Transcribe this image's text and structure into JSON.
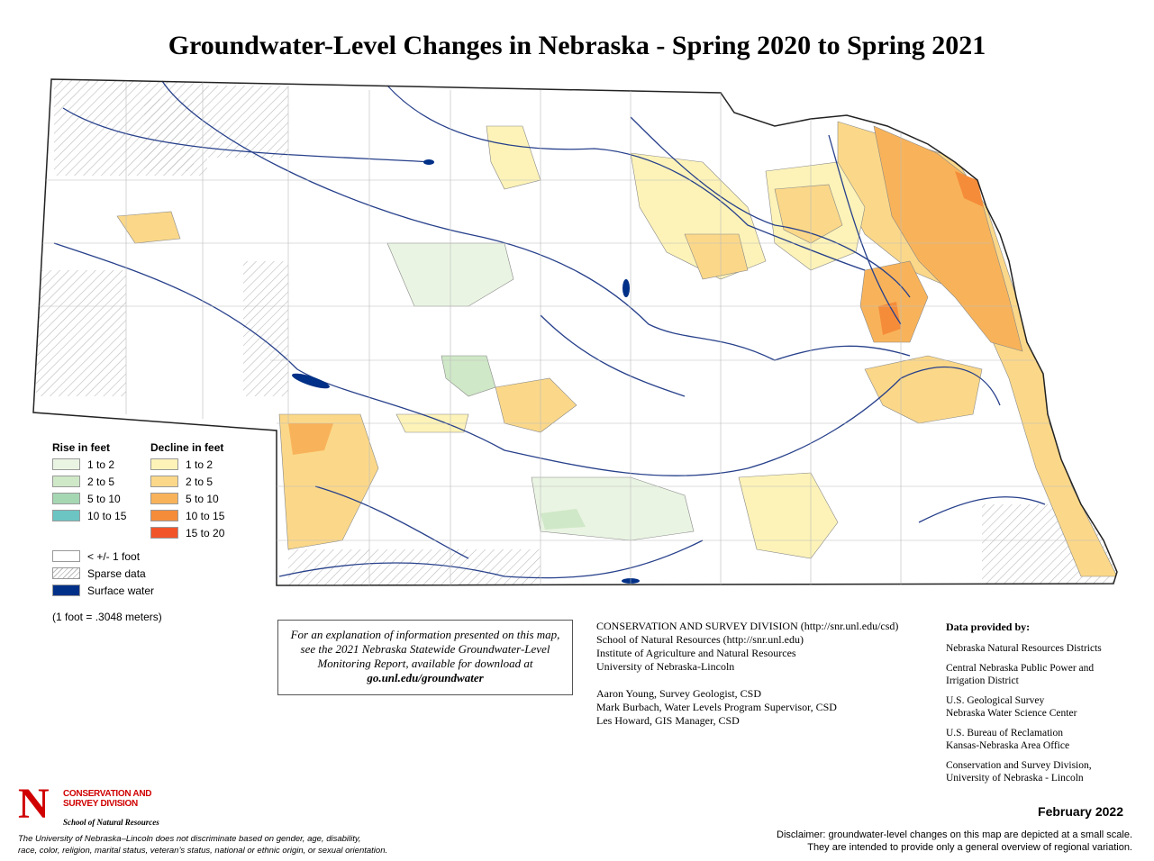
{
  "title": "Groundwater-Level Changes in Nebraska - Spring 2020 to Spring 2021",
  "legend": {
    "rise_title": "Rise in feet",
    "rise": [
      {
        "label": "1 to 2",
        "color": "#eaf4e3"
      },
      {
        "label": "2 to 5",
        "color": "#cfe8c7"
      },
      {
        "label": "5 to 10",
        "color": "#a5d7b3"
      },
      {
        "label": "10 to 15",
        "color": "#6cc5c3"
      }
    ],
    "decline_title": "Decline in feet",
    "decline": [
      {
        "label": "1 to 2",
        "color": "#fdf3b8"
      },
      {
        "label": "2 to 5",
        "color": "#fbd889"
      },
      {
        "label": "5 to 10",
        "color": "#f8b35a"
      },
      {
        "label": "10 to 15",
        "color": "#f58c3a"
      },
      {
        "label": "15 to 20",
        "color": "#f2542a"
      }
    ],
    "other": [
      {
        "label": "< +/- 1 foot",
        "color": "#ffffff"
      },
      {
        "label": "Sparse data",
        "color": "hatch"
      },
      {
        "label": "Surface water",
        "color": "#003087"
      }
    ],
    "note": "(1 foot = .3048 meters)"
  },
  "explanation": {
    "text": "For an explanation of information presented on this map, see the 2021 Nebraska Statewide Groundwater-Level Monitoring Report, available for download at",
    "link": "go.unl.edu/groundwater"
  },
  "credits": {
    "institution": [
      "CONSERVATION AND SURVEY DIVISION (http://snr.unl.edu/csd)",
      "School of Natural Resources (http://snr.unl.edu)",
      "Institute of Agriculture and Natural Resources",
      "University of Nebraska-Lincoln"
    ],
    "staff": [
      "Aaron Young, Survey Geologist, CSD",
      "Mark Burbach, Water Levels Program Supervisor, CSD",
      "Les Howard, GIS Manager, CSD"
    ]
  },
  "data_provided": {
    "title": "Data provided by:",
    "items": [
      [
        "Nebraska Natural Resources Districts"
      ],
      [
        "Central Nebraska Public Power and",
        "Irrigation District"
      ],
      [
        "U.S. Geological Survey",
        "Nebraska Water Science Center"
      ],
      [
        "U.S. Bureau of Reclamation",
        "Kansas-Nebraska Area Office"
      ],
      [
        "Conservation and Survey Division,",
        "University of Nebraska - Lincoln"
      ]
    ]
  },
  "logo": {
    "letter": "N",
    "division": [
      "CONSERVATION AND",
      "SURVEY DIVISION"
    ],
    "school": "School of Natural Resources"
  },
  "nondiscrimination": [
    "The University of Nebraska–Lincoln does not discriminate based on gender, age, disability,",
    "race, color, religion, marital status, veteran’s status, national or ethnic origin, or sexual orientation."
  ],
  "date": "February 2022",
  "disclaimer": [
    "Disclaimer: groundwater-level changes on this map are depicted at a small scale.",
    "They are intended to provide only a general overview of regional variation."
  ]
}
